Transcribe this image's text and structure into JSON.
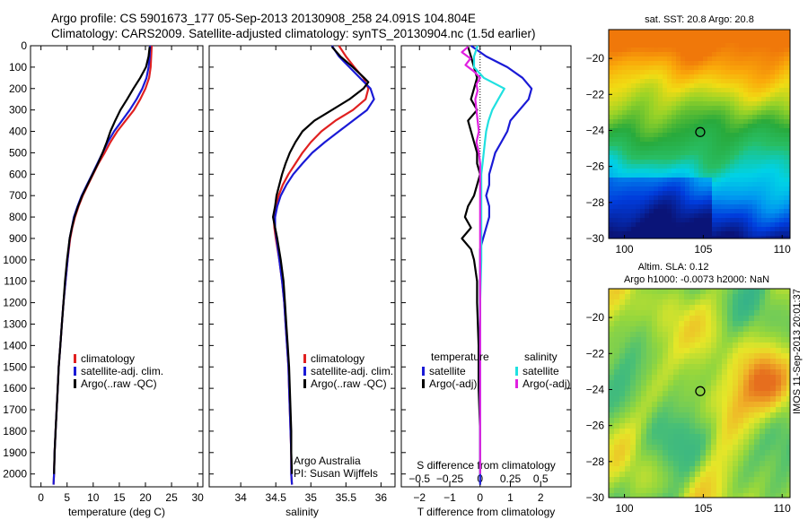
{
  "header": {
    "line1": "Argo profile: CS 5901673_177 05-Sep-2013 20130908_258 24.091S 104.804E",
    "line2": "Climatology: CARS2009. Satellite-adjusted climatology: synTS_20130904.nc (1.5d earlier)"
  },
  "side_label": "IMOS 11-Sep-2013 20:01:37",
  "credits": {
    "line1": "Argo Australia",
    "line2": "PI: Susan Wijffels"
  },
  "colors": {
    "red": "#e02020",
    "blue": "#1a1ad6",
    "black": "#000000",
    "cyan": "#20e0e0",
    "magenta": "#e020e0"
  },
  "chart_data": [
    {
      "type": "line",
      "xlabel": "temperature (deg C)",
      "ylabel": "",
      "xlim": [
        -2,
        31
      ],
      "ylim": [
        2060,
        0
      ],
      "xticks": [
        0,
        5,
        10,
        15,
        20,
        25,
        30
      ],
      "yticks": [
        0,
        100,
        200,
        300,
        400,
        500,
        600,
        700,
        800,
        900,
        1000,
        1100,
        1200,
        1300,
        1400,
        1500,
        1600,
        1700,
        1800,
        1900,
        2000
      ],
      "legend": [
        "climatology",
        "satellite-adj. clim.",
        "Argo(..raw -QC)"
      ],
      "series": [
        {
          "name": "climatology",
          "color": "red",
          "depth": [
            0,
            50,
            100,
            150,
            200,
            250,
            300,
            350,
            400,
            450,
            500,
            550,
            600,
            650,
            700,
            750,
            800,
            850,
            900,
            1000,
            1100,
            1200,
            1300,
            1400,
            1500,
            1600,
            1700,
            1800,
            1900,
            2000,
            2050
          ],
          "values": [
            21.2,
            21.1,
            21.0,
            20.7,
            20.0,
            19.0,
            17.8,
            16.2,
            14.6,
            13.3,
            12.2,
            11.0,
            10.0,
            9.0,
            8.0,
            7.2,
            6.5,
            6.0,
            5.6,
            5.1,
            4.7,
            4.3,
            4.0,
            3.7,
            3.4,
            3.2,
            3.0,
            2.8,
            2.6,
            2.5,
            2.4
          ]
        },
        {
          "name": "satellite-adj. clim.",
          "color": "blue",
          "depth": [
            0,
            50,
            100,
            150,
            200,
            250,
            300,
            350,
            400,
            450,
            500,
            550,
            600,
            650,
            700,
            750,
            800,
            850,
            900,
            1000,
            1100,
            1200,
            1300,
            1400,
            1500,
            1600,
            1700,
            1800,
            1900,
            2000,
            2050
          ],
          "values": [
            20.9,
            20.8,
            20.6,
            20.2,
            19.4,
            18.3,
            17.0,
            15.5,
            14.0,
            12.8,
            11.8,
            10.8,
            9.8,
            8.8,
            7.8,
            7.0,
            6.3,
            5.9,
            5.5,
            5.1,
            4.7,
            4.3,
            4.0,
            3.7,
            3.4,
            3.2,
            3.0,
            2.8,
            2.6,
            2.5,
            2.4
          ]
        },
        {
          "name": "Argo(..raw -QC)",
          "color": "black",
          "depth": [
            5,
            50,
            100,
            150,
            200,
            250,
            300,
            350,
            400,
            450,
            500,
            550,
            600,
            650,
            700,
            750,
            800,
            850,
            900,
            1000,
            1100,
            1200,
            1300,
            1400,
            1500,
            1600,
            1700,
            1800,
            1900,
            2000
          ],
          "values": [
            20.8,
            20.6,
            20.1,
            19.0,
            17.7,
            16.5,
            15.2,
            14.2,
            13.3,
            12.6,
            11.8,
            10.9,
            9.9,
            8.9,
            7.9,
            7.1,
            6.4,
            5.9,
            5.5,
            5.0,
            4.6,
            4.3,
            4.0,
            3.7,
            3.4,
            3.2,
            3.0,
            2.8,
            2.6,
            2.5
          ]
        }
      ]
    },
    {
      "type": "line",
      "xlabel": "salinity",
      "ylabel": "",
      "xlim": [
        33.55,
        36.2
      ],
      "ylim": [
        2060,
        0
      ],
      "xticks": [
        34,
        34.5,
        35,
        35.5,
        36
      ],
      "legend": [
        "climatology",
        "satellite-adj. clim.",
        "Argo(..raw -QC)"
      ],
      "series": [
        {
          "name": "climatology",
          "color": "red",
          "depth": [
            0,
            50,
            100,
            150,
            200,
            250,
            300,
            350,
            400,
            450,
            500,
            550,
            600,
            650,
            700,
            750,
            800,
            850,
            900,
            1000,
            1100,
            1200,
            1300,
            1400,
            1500,
            1600,
            1700,
            1800,
            1900,
            2000,
            2050
          ],
          "values": [
            35.4,
            35.5,
            35.62,
            35.75,
            35.82,
            35.78,
            35.6,
            35.35,
            35.15,
            35.0,
            34.88,
            34.78,
            34.68,
            34.6,
            34.54,
            34.5,
            34.47,
            34.48,
            34.5,
            34.55,
            34.59,
            34.62,
            34.64,
            34.66,
            34.68,
            34.69,
            34.7,
            34.71,
            34.72,
            34.72,
            34.73
          ]
        },
        {
          "name": "satellite-adj. clim.",
          "color": "blue",
          "depth": [
            0,
            50,
            100,
            150,
            200,
            250,
            300,
            350,
            400,
            450,
            500,
            550,
            600,
            650,
            700,
            750,
            800,
            850,
            900,
            1000,
            1100,
            1200,
            1300,
            1400,
            1500,
            1600,
            1700,
            1800,
            1900,
            2000,
            2050
          ],
          "values": [
            35.3,
            35.4,
            35.55,
            35.7,
            35.85,
            35.9,
            35.8,
            35.6,
            35.4,
            35.2,
            35.02,
            34.88,
            34.75,
            34.65,
            34.57,
            34.52,
            34.49,
            34.49,
            34.51,
            34.55,
            34.59,
            34.62,
            34.64,
            34.66,
            34.68,
            34.69,
            34.7,
            34.71,
            34.72,
            34.72,
            34.73
          ]
        },
        {
          "name": "Argo(..raw -QC)",
          "color": "black",
          "depth": [
            5,
            50,
            100,
            150,
            170,
            200,
            250,
            300,
            350,
            400,
            450,
            500,
            550,
            600,
            650,
            700,
            750,
            800,
            850,
            900,
            1000,
            1100,
            1200,
            1300,
            1400,
            1500,
            1600,
            1700,
            1800,
            1900,
            2000
          ],
          "values": [
            35.3,
            35.42,
            35.6,
            35.76,
            35.82,
            35.75,
            35.55,
            35.3,
            35.05,
            34.88,
            34.78,
            34.7,
            34.64,
            34.59,
            34.55,
            34.51,
            34.49,
            34.46,
            34.49,
            34.52,
            34.57,
            34.61,
            34.63,
            34.65,
            34.67,
            34.69,
            34.7,
            34.71,
            34.72,
            34.72,
            34.73
          ]
        }
      ]
    },
    {
      "type": "line",
      "xlabel": "T difference from climatology",
      "xlabel_top": "S difference from climatology",
      "xlim": [
        -2.6,
        3.0
      ],
      "ylim": [
        2060,
        0
      ],
      "xticks": [
        -2,
        -1,
        0,
        1,
        2
      ],
      "xticks_top": [
        -0.5,
        -0.25,
        0,
        0.25,
        0.5
      ],
      "legend_groups": {
        "temperature": [
          "satellite",
          "Argo(-adj)"
        ],
        "salinity": [
          "satellite",
          "Argo(-adj)"
        ]
      },
      "series": [
        {
          "name": "temperature satellite",
          "color": "blue",
          "depth": [
            0,
            50,
            100,
            150,
            200,
            250,
            300,
            350,
            400,
            450,
            500,
            550,
            600,
            650,
            700,
            750,
            800,
            850,
            900,
            950,
            1000,
            1100,
            1200,
            1400,
            1600,
            1800,
            2000,
            2050
          ],
          "values": [
            -0.3,
            0.2,
            0.9,
            1.4,
            1.7,
            1.6,
            1.3,
            1.0,
            0.9,
            0.7,
            0.5,
            0.4,
            0.3,
            0.3,
            0.2,
            0.3,
            0.3,
            0.2,
            0.1,
            0.0,
            0.0,
            0.0,
            0.0,
            0.0,
            0.0,
            0.0,
            0.0,
            0.0
          ]
        },
        {
          "name": "temperature Argo(-adj)",
          "color": "black",
          "depth": [
            5,
            50,
            100,
            150,
            200,
            250,
            300,
            350,
            400,
            450,
            500,
            550,
            600,
            650,
            700,
            750,
            800,
            850,
            900,
            950,
            1000,
            1100,
            1200,
            1400,
            1600,
            1800,
            2000
          ],
          "values": [
            -0.4,
            -0.3,
            -0.2,
            -0.1,
            -0.2,
            -0.3,
            -0.1,
            -0.4,
            -0.3,
            -0.2,
            -0.1,
            -0.1,
            0.0,
            -0.1,
            -0.2,
            -0.4,
            -0.5,
            -0.3,
            -0.6,
            -0.3,
            -0.2,
            -0.1,
            -0.1,
            -0.05,
            -0.05,
            0.0,
            0.0
          ]
        },
        {
          "name": "salinity satellite",
          "color": "cyan",
          "depth": [
            0,
            50,
            100,
            150,
            200,
            250,
            300,
            350,
            400,
            450,
            500,
            550,
            600,
            700,
            800,
            900,
            1000,
            1200,
            1400,
            1600,
            1800,
            2000
          ],
          "values": [
            -0.02,
            -0.05,
            -0.05,
            0.03,
            0.2,
            0.15,
            0.1,
            0.07,
            0.05,
            0.04,
            0.03,
            0.02,
            0.01,
            0.01,
            0.01,
            0.01,
            0.01,
            0.0,
            0.0,
            0.0,
            0.0,
            0.0
          ]
        },
        {
          "name": "salinity Argo(-adj)",
          "color": "magenta",
          "depth": [
            5,
            30,
            60,
            90,
            120,
            150,
            180,
            210,
            250,
            300,
            350,
            400,
            450,
            500,
            550,
            600,
            650,
            700,
            800,
            1000,
            1200,
            1600,
            2000
          ],
          "values": [
            -0.1,
            -0.15,
            -0.08,
            -0.12,
            -0.05,
            0.0,
            -0.03,
            -0.02,
            -0.04,
            -0.03,
            -0.02,
            -0.01,
            -0.03,
            -0.01,
            0.0,
            0.0,
            0.0,
            0.0,
            0.0,
            0.0,
            0.0,
            0.0,
            0.0
          ]
        }
      ]
    },
    {
      "type": "heatmap",
      "title": "sat. SST: 20.8 Argo: 20.8",
      "xlim": [
        99,
        110.5
      ],
      "ylim": [
        -30,
        -18.4
      ],
      "xticks": [
        100,
        105,
        110
      ],
      "yticks": [
        -20,
        -22,
        -24,
        -26,
        -28,
        -30
      ],
      "marker": {
        "lon": 104.804,
        "lat": -24.091
      }
    },
    {
      "type": "heatmap",
      "title": "Altim. SLA: 0.12",
      "subtitle": "Argo h1000: -0.0073 h2000: NaN",
      "xlim": [
        99,
        110.5
      ],
      "ylim": [
        -30,
        -18.4
      ],
      "xticks": [
        100,
        105,
        110
      ],
      "yticks": [
        -20,
        -22,
        -24,
        -26,
        -28,
        -30
      ],
      "marker": {
        "lon": 104.804,
        "lat": -24.091
      }
    }
  ]
}
